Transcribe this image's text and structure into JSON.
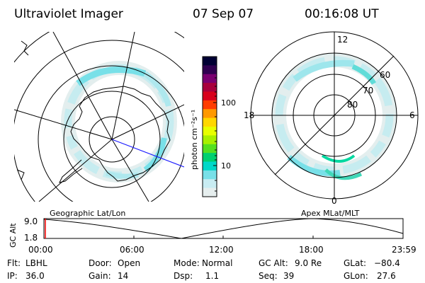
{
  "header": {
    "title": "Ultraviolet Imager",
    "date": "07 Sep 07",
    "time": "00:16:08 UT"
  },
  "left_map": {
    "label": "Geographic Lat/Lon"
  },
  "right_map": {
    "label": "Apex MLat/MLT",
    "mlt_labels": [
      "12",
      "18",
      "6",
      "0"
    ],
    "lat_labels": [
      "60",
      "70",
      "80"
    ]
  },
  "colorbar": {
    "unit_label": "photon cm⁻²s⁻¹",
    "tick_labels": [
      "100",
      "10"
    ],
    "colors": [
      "#000033",
      "#300050",
      "#7a0070",
      "#a8003c",
      "#d8001c",
      "#ff3c00",
      "#ff9900",
      "#ffd700",
      "#e8ff00",
      "#a8f000",
      "#55e020",
      "#00d070",
      "#00d8c8",
      "#78e0e8",
      "#c8ecf2",
      "#e6eeee"
    ]
  },
  "altitude_plot": {
    "axis_label": "GC Alt",
    "y_ticks": [
      "9.0",
      "1.8"
    ],
    "x_ticks": [
      "00:00",
      "06:00",
      "12:00",
      "18:00",
      "23:59"
    ],
    "marker_color": "#ff0000"
  },
  "info": {
    "row1": [
      {
        "key": "Flt:",
        "value": "LBHL"
      },
      {
        "key": "Door:",
        "value": "Open"
      },
      {
        "key": "Mode:",
        "value": "Normal"
      },
      {
        "key": "GC Alt:",
        "value": "9.0 Re"
      },
      {
        "key": "GLat:",
        "value": "−80.4"
      }
    ],
    "row2": [
      {
        "key": "IP:",
        "value": "36.0"
      },
      {
        "key": "Gain:",
        "value": "14"
      },
      {
        "key": "Dsp:",
        "value": "1.1"
      },
      {
        "key": "Seq:",
        "value": "39"
      },
      {
        "key": "GLon:",
        "value": "27.6"
      }
    ]
  }
}
